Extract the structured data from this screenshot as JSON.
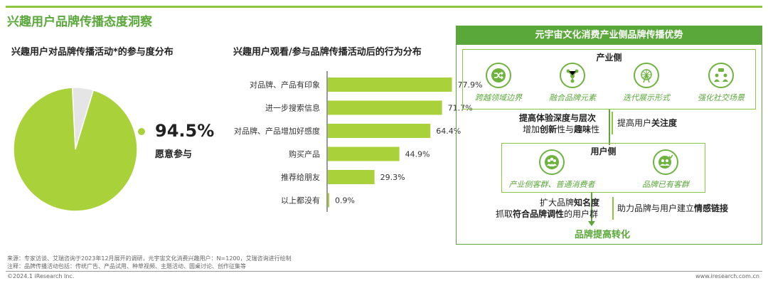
{
  "page_title": "兴趣用户品牌传播态度洞察",
  "pie": {
    "title": "兴趣用户对品牌传播活动*的参与度分布",
    "percent": "94.5%",
    "label": "愿意参与"
  },
  "bar": {
    "title": "兴趣用户观看/参与品牌传播活动后的行为分布"
  },
  "chart_data": [
    {
      "type": "pie",
      "title": "兴趣用户对品牌传播活动*的参与度分布",
      "slices": [
        {
          "name": "愿意参与",
          "value": 94.5,
          "color": "#a8d13a"
        },
        {
          "name": "",
          "value": 5.5,
          "color": "#e5e5e5"
        }
      ]
    },
    {
      "type": "bar",
      "orientation": "horizontal",
      "title": "兴趣用户观看/参与品牌传播活动后的行为分布",
      "categories": [
        "对品牌、产品有印象",
        "进一步搜索信息",
        "对品牌、产品增加好感度",
        "购买产品",
        "推荐给朋友",
        "以上都没有"
      ],
      "values": [
        77.9,
        71.7,
        64.4,
        44.9,
        29.3,
        0.9
      ],
      "value_labels": [
        "77.9%",
        "71.7%",
        "64.4%",
        "44.9%",
        "29.3%",
        "0.9%"
      ],
      "color": "#a8d13a",
      "xlim": [
        0,
        100
      ]
    }
  ],
  "panel": {
    "header": "元宇宙文化消费产业侧品牌传播优势",
    "industry": {
      "title": "产业侧",
      "items": [
        {
          "label": "跨越领域边界",
          "icon": "shuffle-icon"
        },
        {
          "label": "融合品牌元素",
          "icon": "network-icon"
        },
        {
          "label": "迭代展示形式",
          "icon": "ferris-wheel-icon"
        },
        {
          "label": "强化社交场景",
          "icon": "people-chat-icon"
        }
      ]
    },
    "mid": {
      "line1_b": "提高体验深度与层次",
      "line2_a": "增加",
      "line2_b1": "创新",
      "line2_c": "性与",
      "line2_b2": "趣味",
      "line2_d": "性",
      "right_a": "提高用户",
      "right_b": "关注度"
    },
    "user": {
      "title": "用户侧",
      "items": [
        {
          "label": "产业侧客群、普通消费者",
          "icon": "group-icon"
        },
        {
          "label": "品牌已有客群",
          "icon": "group-check-icon"
        }
      ]
    },
    "bottom": {
      "line1_a": "扩大品牌",
      "line1_b": "知名度",
      "line2_a": "抓取",
      "line2_b": "符合品牌调性",
      "line2_c": "的用户群",
      "right_a": "助力品牌与用户建立",
      "right_b": "情感链接"
    },
    "final": "品牌提高转化"
  },
  "footer": {
    "source": "来源：专家访谈、艾瑞咨询于2023年12月展开的调研，元宇宙文化消费兴趣用户：N=1200，艾瑞咨询进行绘制",
    "note": "注释：品牌传播活动包括：传统广告、产品试用、种草视频、主题活动、圆桌讨论、创作征集等",
    "copyright": "©2024.1 iResearch Inc.",
    "site": "www.iresearch.com.cn"
  },
  "colors": {
    "accent": "#5aa83a",
    "bar": "#a8d13a",
    "light": "#e5e5e5"
  }
}
